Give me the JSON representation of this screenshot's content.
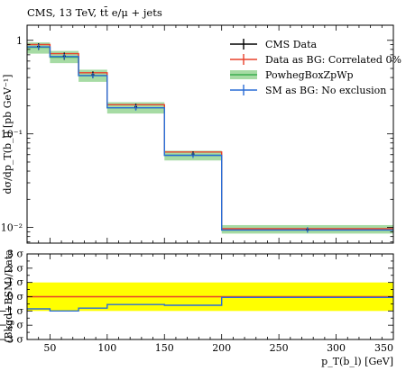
{
  "chart_data": {
    "type": "line",
    "title": "CMS, 13 TeV, tt̄ e/μ + jets",
    "xlabel": "p_T(b_l) [GeV]",
    "ylabel": "dσ/dp_T(b_l) [pb GeV⁻¹]",
    "ratio_ylabel": "(Bkgd+BSM)/Data",
    "xlim": [
      30,
      350
    ],
    "ylim": [
      0.0068,
      1.45
    ],
    "yscale": "log",
    "ratio_ylim": [
      -3,
      3
    ],
    "x_ticks": [
      50,
      100,
      150,
      200,
      250,
      300,
      350
    ],
    "x_tick_labels": [
      "50",
      "100",
      "150",
      "200",
      "250",
      "300",
      "350"
    ],
    "y_ticks": [
      1,
      0.1,
      0.01
    ],
    "y_tick_labels": [
      "1",
      "10⁻¹",
      "10⁻²"
    ],
    "ratio_ticks": [
      3,
      2,
      1,
      0,
      -1,
      -2,
      -3
    ],
    "ratio_tick_labels": [
      "3 σ",
      "2 σ",
      "1 σ",
      "0 σ",
      "−1 σ",
      "−2 σ",
      "−3 σ"
    ],
    "bin_edges": [
      30,
      50,
      75,
      100,
      150,
      200,
      350
    ],
    "bin_centers": [
      40,
      62.5,
      87.5,
      125,
      175,
      275
    ],
    "grid": false,
    "legend_position": "top-right",
    "legend": [
      "CMS Data",
      "Data as BG: Correlated 0%",
      "PowhegBoxZpWp",
      "SM as BG: No exclusion"
    ],
    "series": [
      {
        "name": "CMS Data",
        "values": [
          0.86,
          0.68,
          0.43,
          0.195,
          0.061,
          0.0095
        ],
        "errors": [
          0.07,
          0.06,
          0.035,
          0.015,
          0.004,
          0.0005
        ],
        "color": "#000000"
      },
      {
        "name": "Data as BG: Correlated 0%",
        "values": [
          0.9,
          0.72,
          0.45,
          0.205,
          0.064,
          0.0097
        ],
        "color": "#e8402a"
      },
      {
        "name": "PowhegBoxZpWp",
        "values": [
          0.84,
          0.66,
          0.42,
          0.19,
          0.059,
          0.0094
        ],
        "band_low": [
          0.72,
          0.57,
          0.36,
          0.165,
          0.052,
          0.0086
        ],
        "band_high": [
          0.95,
          0.77,
          0.485,
          0.218,
          0.066,
          0.0106
        ],
        "color": "#3cae4f"
      },
      {
        "name": "SM as BG: No exclusion",
        "values": [
          0.85,
          0.67,
          0.42,
          0.19,
          0.059,
          0.0094
        ],
        "color": "#2a6dd6"
      }
    ],
    "ratio_series": [
      {
        "name": "SM as BG: No exclusion",
        "values": [
          -0.85,
          -1.0,
          -0.8,
          -0.55,
          -0.6,
          -0.05
        ],
        "color": "#2a6dd6"
      },
      {
        "name": "Data as BG: Correlated 0%",
        "values": [
          0,
          0,
          0,
          0,
          0,
          0
        ],
        "color": "#e8402a"
      }
    ],
    "ratio_band": [
      -1,
      1
    ],
    "ratio_band_color": "#ffff00"
  }
}
